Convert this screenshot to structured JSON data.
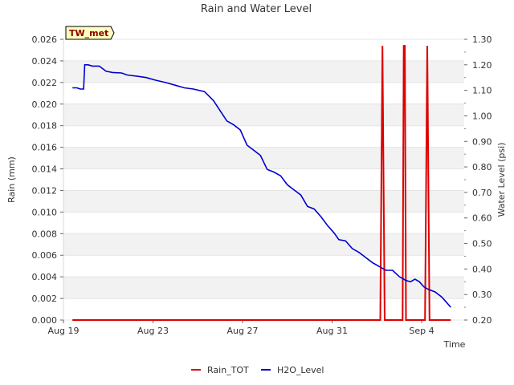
{
  "chart_data": {
    "type": "line",
    "title": "Rain and Water Level",
    "badge": "TW_met",
    "xlabel": "Time",
    "ylabel_left": "Rain (mm)",
    "ylabel_right": "Water Level (psi)",
    "x_ticks": [
      {
        "day": 0,
        "label": "Aug 19"
      },
      {
        "day": 4,
        "label": "Aug 23"
      },
      {
        "day": 8,
        "label": "Aug 27"
      },
      {
        "day": 12,
        "label": "Aug 31"
      },
      {
        "day": 16,
        "label": "Sep 4"
      }
    ],
    "xlim": [
      0,
      17.9
    ],
    "ylim_left": [
      0,
      0.026
    ],
    "ylim_right": [
      0.2,
      1.3
    ],
    "y_left_ticks": [
      "0.000",
      "0.002",
      "0.004",
      "0.006",
      "0.008",
      "0.010",
      "0.012",
      "0.014",
      "0.016",
      "0.018",
      "0.020",
      "0.022",
      "0.024",
      "0.026"
    ],
    "y_right_ticks": [
      "0.20",
      "0.30",
      "0.40",
      "0.50",
      "0.60",
      "0.70",
      "0.80",
      "0.90",
      "1.00",
      "1.10",
      "1.20",
      "1.30"
    ],
    "series": [
      {
        "name": "Rain_TOT",
        "axis": "left",
        "color": "#dd0000",
        "points": [
          [
            0.4,
            0.0
          ],
          [
            14.15,
            0.0
          ],
          [
            14.25,
            0.0254
          ],
          [
            14.35,
            0.0
          ],
          [
            15.15,
            0.0
          ],
          [
            15.2,
            0.0254
          ],
          [
            15.25,
            0.0254
          ],
          [
            15.3,
            0.0
          ],
          [
            16.15,
            0.0
          ],
          [
            16.25,
            0.0254
          ],
          [
            16.35,
            0.0
          ],
          [
            17.3,
            0.0
          ]
        ]
      },
      {
        "name": "H2O_Level",
        "axis": "right",
        "color": "#0000cc",
        "points": [
          [
            0.4,
            1.11
          ],
          [
            0.6,
            1.11
          ],
          [
            0.75,
            1.105
          ],
          [
            0.9,
            1.105
          ],
          [
            0.95,
            1.2
          ],
          [
            1.1,
            1.2
          ],
          [
            1.3,
            1.195
          ],
          [
            1.6,
            1.195
          ],
          [
            1.9,
            1.175
          ],
          [
            2.2,
            1.17
          ],
          [
            2.6,
            1.168
          ],
          [
            2.85,
            1.16
          ],
          [
            3.3,
            1.155
          ],
          [
            3.7,
            1.15
          ],
          [
            4.1,
            1.14
          ],
          [
            4.6,
            1.13
          ],
          [
            5.0,
            1.12
          ],
          [
            5.4,
            1.11
          ],
          [
            5.8,
            1.105
          ],
          [
            6.3,
            1.095
          ],
          [
            6.7,
            1.06
          ],
          [
            7.0,
            1.02
          ],
          [
            7.3,
            0.98
          ],
          [
            7.6,
            0.965
          ],
          [
            7.9,
            0.945
          ],
          [
            8.2,
            0.885
          ],
          [
            8.5,
            0.865
          ],
          [
            8.8,
            0.845
          ],
          [
            9.1,
            0.79
          ],
          [
            9.4,
            0.78
          ],
          [
            9.7,
            0.765
          ],
          [
            10.0,
            0.73
          ],
          [
            10.3,
            0.71
          ],
          [
            10.6,
            0.69
          ],
          [
            10.9,
            0.645
          ],
          [
            11.2,
            0.635
          ],
          [
            11.5,
            0.605
          ],
          [
            11.8,
            0.57
          ],
          [
            12.1,
            0.54
          ],
          [
            12.3,
            0.515
          ],
          [
            12.6,
            0.51
          ],
          [
            12.9,
            0.48
          ],
          [
            13.2,
            0.465
          ],
          [
            13.5,
            0.445
          ],
          [
            13.8,
            0.425
          ],
          [
            14.1,
            0.41
          ],
          [
            14.4,
            0.395
          ],
          [
            14.7,
            0.395
          ],
          [
            15.0,
            0.37
          ],
          [
            15.3,
            0.355
          ],
          [
            15.5,
            0.35
          ],
          [
            15.7,
            0.36
          ],
          [
            15.9,
            0.35
          ],
          [
            16.1,
            0.33
          ],
          [
            16.3,
            0.32
          ],
          [
            16.6,
            0.31
          ],
          [
            16.9,
            0.29
          ],
          [
            17.1,
            0.27
          ],
          [
            17.3,
            0.25
          ]
        ]
      }
    ],
    "legend": [
      {
        "label": "Rain_TOT",
        "color": "#dd0000"
      },
      {
        "label": "H2O_Level",
        "color": "#0000cc"
      }
    ],
    "legend_position": "bottom-center",
    "grid": "horizontal bands"
  }
}
